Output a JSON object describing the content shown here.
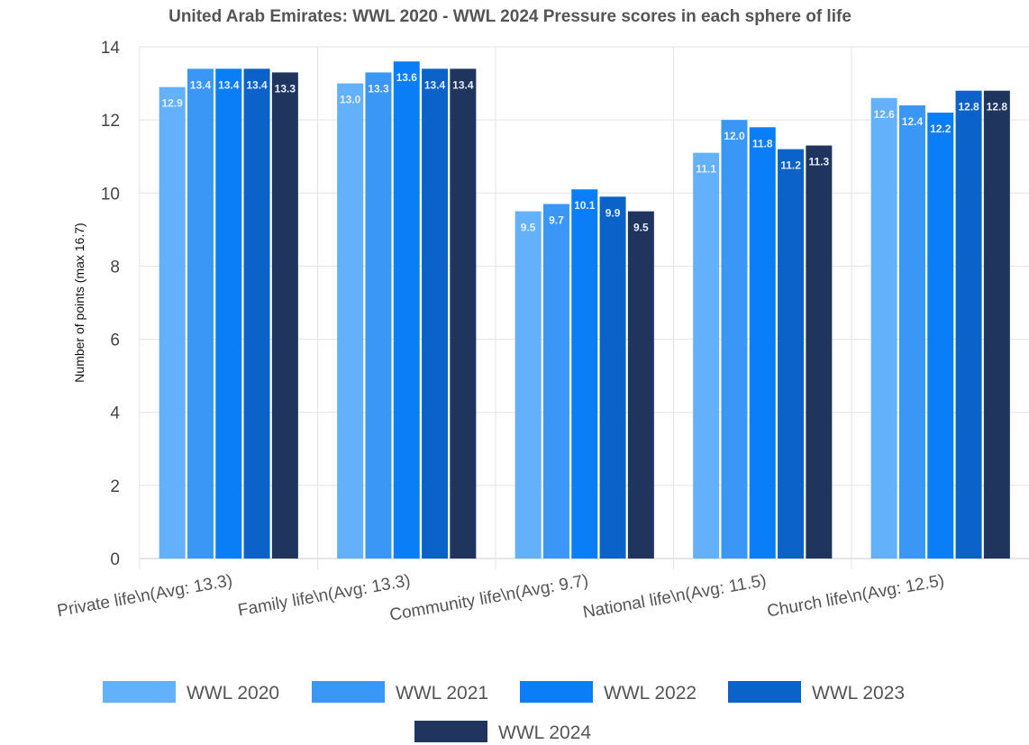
{
  "chart_data": {
    "type": "bar",
    "title": "United Arab Emirates: WWL 2020 - WWL 2024 Pressure scores in each sphere of life",
    "ylabel": "Number of points (max 16.7)",
    "xlabel": "",
    "ylim": [
      0,
      14
    ],
    "yticks": [
      "0",
      "2",
      "4",
      "6",
      "8",
      "10",
      "12",
      "14"
    ],
    "grid": true,
    "legend_position": "bottom",
    "categories": [
      "Private life\\n(Avg: 13.3)",
      "Family life\\n(Avg: 13.3)",
      "Community life\\n(Avg: 9.7)",
      "National life\\n(Avg: 11.5)",
      "Church life\\n(Avg: 12.5)"
    ],
    "series": [
      {
        "name": "WWL 2020",
        "color": "#63b0fb",
        "values": [
          12.9,
          13.0,
          9.5,
          11.1,
          12.6
        ],
        "labels": [
          "12.9",
          "13.0",
          "9.5",
          "11.1",
          "12.6"
        ]
      },
      {
        "name": "WWL 2021",
        "color": "#3a97f5",
        "values": [
          13.4,
          13.3,
          9.7,
          12.0,
          12.4
        ],
        "labels": [
          "13.4",
          "13.3",
          "9.7",
          "12.0",
          "12.4"
        ]
      },
      {
        "name": "WWL 2022",
        "color": "#0a7ef6",
        "values": [
          13.4,
          13.6,
          10.1,
          11.8,
          12.2
        ],
        "labels": [
          "13.4",
          "13.6",
          "10.1",
          "11.8",
          "12.2"
        ]
      },
      {
        "name": "WWL 2023",
        "color": "#0b62c9",
        "values": [
          13.4,
          13.4,
          9.9,
          11.2,
          12.8
        ],
        "labels": [
          "13.4",
          "13.4",
          "9.9",
          "11.2",
          "12.8"
        ]
      },
      {
        "name": "WWL 2024",
        "color": "#1f355e",
        "values": [
          13.3,
          13.4,
          9.5,
          11.3,
          12.8
        ],
        "labels": [
          "13.3",
          "13.4",
          "9.5",
          "11.3",
          "12.8"
        ]
      }
    ]
  }
}
